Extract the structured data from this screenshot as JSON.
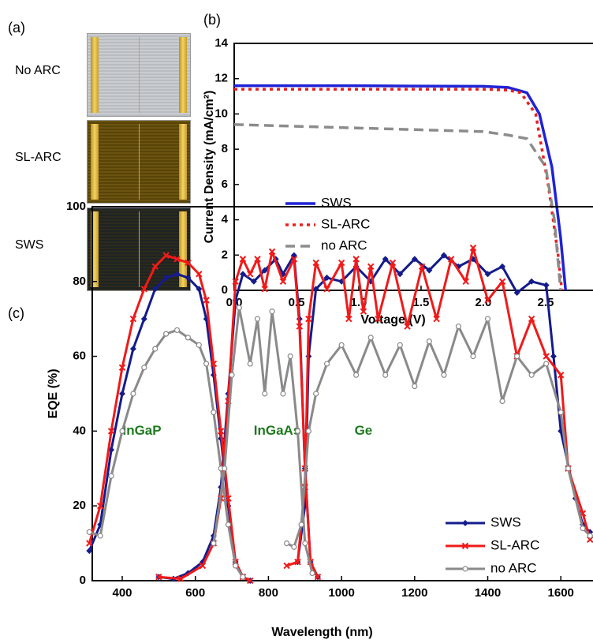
{
  "panel_labels": [
    "(a)",
    "(b)",
    "(c)"
  ],
  "photos": {
    "labels": [
      "No ARC",
      "SL-ARC",
      "SWS"
    ]
  },
  "chart_data": [
    {
      "type": "line",
      "x_label": "Voltage (V)",
      "y_label": "Current Density (mA/cm²)",
      "xlim": [
        0,
        2.88
      ],
      "ylim": [
        0,
        14
      ],
      "xticks": [
        {
          "value": 0,
          "label": "0.0"
        },
        {
          "value": 0.5,
          "label": "0.5"
        },
        {
          "value": 1,
          "label": "1.0"
        },
        {
          "value": 1.5,
          "label": "1.5"
        },
        {
          "value": 2,
          "label": "2.0"
        },
        {
          "value": 2.5,
          "label": "2.5"
        }
      ],
      "yticks": [
        0,
        2,
        4,
        6,
        8,
        10,
        12,
        14
      ],
      "series": [
        {
          "name": "SWS",
          "color": "#1f23d6",
          "dash": "solid",
          "x": [
            0,
            0.5,
            1.0,
            1.5,
            2.0,
            2.2,
            2.35,
            2.45,
            2.55,
            2.62,
            2.66
          ],
          "values": [
            11.6,
            11.6,
            11.6,
            11.58,
            11.57,
            11.5,
            11.2,
            10.0,
            7.0,
            3.0,
            0
          ]
        },
        {
          "name": "SL-ARC",
          "color": "#e8201e",
          "dash": "dotted",
          "x": [
            0,
            0.5,
            1.0,
            1.5,
            2.0,
            2.2,
            2.3,
            2.42,
            2.52,
            2.6,
            2.63
          ],
          "values": [
            11.4,
            11.4,
            11.4,
            11.4,
            11.4,
            11.35,
            11.2,
            10.0,
            6.0,
            2.0,
            0
          ]
        },
        {
          "name": "no ARC",
          "color": "#8c8c8c",
          "dash": "dashed",
          "x": [
            0,
            0.5,
            1.0,
            1.5,
            2.0,
            2.2,
            2.35,
            2.5,
            2.57,
            2.62
          ],
          "values": [
            9.4,
            9.3,
            9.2,
            9.1,
            9.0,
            8.8,
            8.6,
            7.0,
            4.0,
            0
          ]
        }
      ]
    },
    {
      "type": "line",
      "x_label": "Wavelength (nm)",
      "y_label": "EQE (%)",
      "annotations": [
        "InGaP",
        "InGaAs",
        "Ge"
      ],
      "annotation_color": "#1e7a1e",
      "xlim": [
        318,
        1688
      ],
      "ylim": [
        0,
        100
      ],
      "xticks": [
        400,
        600,
        800,
        1000,
        1200,
        1400,
        1600
      ],
      "yticks": [
        0,
        20,
        40,
        60,
        80,
        100
      ],
      "series": [
        {
          "name": "SWS",
          "color": "#141c8c",
          "marker": "diamond",
          "x": [
            310,
            340,
            370,
            400,
            430,
            460,
            490,
            520,
            550,
            580,
            610,
            630,
            650,
            670,
            690,
            710,
            730,
            750,
            null,
            500,
            540,
            580,
            620,
            650,
            670,
            690,
            710,
            730,
            760,
            790,
            820,
            840,
            870,
            885,
            900,
            915,
            935,
            null,
            880,
            900,
            910,
            930,
            960,
            1000,
            1040,
            1080,
            1120,
            1160,
            1200,
            1240,
            1280,
            1320,
            1360,
            1400,
            1440,
            1480,
            1520,
            1560,
            1580,
            1600,
            1640,
            1660,
            1680
          ],
          "values": [
            8,
            15,
            35,
            50,
            62,
            70,
            78,
            81,
            82,
            81,
            78,
            70,
            55,
            38,
            20,
            5,
            1,
            0,
            null,
            1,
            0.5,
            2,
            5,
            12,
            25,
            50,
            75,
            82,
            80,
            83,
            86,
            82,
            87,
            70,
            30,
            5,
            1,
            null,
            5,
            20,
            60,
            78,
            81,
            80,
            84,
            80,
            86,
            82,
            86,
            83,
            87,
            84,
            86,
            82,
            84,
            77,
            80,
            79,
            60,
            40,
            22,
            15,
            13
          ]
        },
        {
          "name": "SL-ARC",
          "color": "#f01a1a",
          "marker": "x",
          "x": [
            310,
            340,
            370,
            400,
            430,
            460,
            490,
            520,
            550,
            580,
            610,
            630,
            650,
            670,
            690,
            710,
            730,
            750,
            null,
            500,
            560,
            620,
            650,
            670,
            690,
            710,
            730,
            750,
            770,
            790,
            810,
            840,
            870,
            885,
            900,
            915,
            935,
            null,
            850,
            880,
            900,
            910,
            930,
            960,
            1000,
            1020,
            1040,
            1060,
            1080,
            1100,
            1140,
            1180,
            1220,
            1260,
            1300,
            1340,
            1360,
            1400,
            1440,
            1480,
            1520,
            1560,
            1600,
            1620,
            1660,
            1680
          ],
          "values": [
            10,
            20,
            40,
            57,
            70,
            78,
            84,
            87,
            86,
            85,
            82,
            75,
            58,
            40,
            22,
            5,
            1,
            0,
            null,
            1,
            0.5,
            4,
            10,
            22,
            48,
            80,
            86,
            82,
            86,
            78,
            88,
            80,
            86,
            68,
            30,
            5,
            1,
            null,
            4,
            5,
            25,
            70,
            85,
            78,
            85,
            70,
            86,
            72,
            84,
            70,
            85,
            68,
            84,
            70,
            86,
            80,
            89,
            75,
            80,
            60,
            70,
            60,
            55,
            30,
            18,
            11
          ]
        },
        {
          "name": "no ARC",
          "color": "#8a8a8a",
          "marker": "circle",
          "x": [
            310,
            340,
            370,
            400,
            430,
            460,
            490,
            520,
            550,
            580,
            610,
            630,
            650,
            670,
            690,
            710,
            730,
            null,
            650,
            680,
            700,
            720,
            750,
            770,
            790,
            810,
            840,
            860,
            880,
            900,
            920,
            null,
            850,
            870,
            890,
            910,
            930,
            960,
            1000,
            1040,
            1080,
            1120,
            1160,
            1200,
            1240,
            1280,
            1320,
            1360,
            1400,
            1440,
            1480,
            1520,
            1560,
            1600,
            1620,
            1660,
            1680
          ],
          "values": [
            13,
            12,
            28,
            40,
            50,
            57,
            62,
            66,
            67,
            65,
            63,
            58,
            45,
            30,
            15,
            4,
            1,
            null,
            10,
            30,
            55,
            73,
            58,
            70,
            50,
            72,
            50,
            60,
            40,
            10,
            2,
            null,
            10,
            9,
            15,
            40,
            50,
            58,
            63,
            55,
            65,
            55,
            63,
            52,
            64,
            55,
            68,
            60,
            70,
            48,
            60,
            55,
            58,
            45,
            30,
            14,
            12
          ]
        }
      ]
    }
  ]
}
